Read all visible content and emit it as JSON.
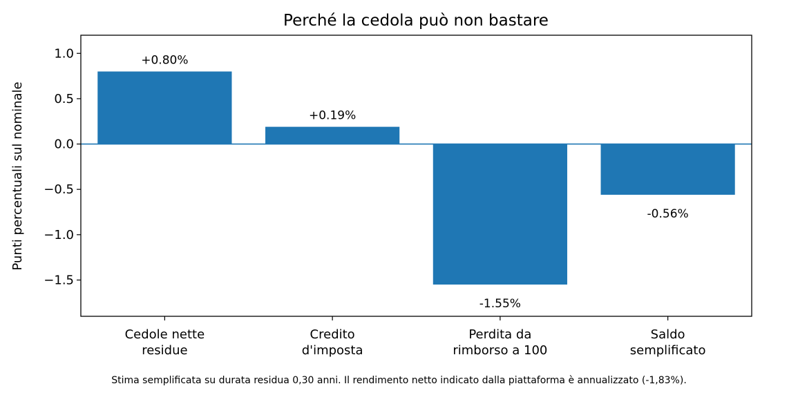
{
  "chart_data": {
    "type": "bar",
    "title": "Perché la cedola può non bastare",
    "ylabel": "Punti percentuali sul nominale",
    "xlabel": "",
    "categories": [
      [
        "Cedole nette",
        "residue"
      ],
      [
        "Credito",
        "d'imposta"
      ],
      [
        "Perdita da",
        "rimborso a 100"
      ],
      [
        "Saldo",
        "semplificato"
      ]
    ],
    "values": [
      0.8,
      0.19,
      -1.55,
      -0.56
    ],
    "data_labels": [
      "+0.80%",
      "+0.19%",
      "-1.55%",
      "-0.56%"
    ],
    "ylim": [
      -1.9,
      1.2
    ],
    "yticks": [
      1.0,
      0.5,
      0.0,
      -0.5,
      -1.0,
      -1.5
    ],
    "ytick_labels": [
      "1.0",
      "0.5",
      "0.0",
      "−0.5",
      "−1.0",
      "−1.5"
    ],
    "bar_color": "#1f77b4",
    "zero_line_color": "#1f77b4",
    "grid": false
  },
  "footnote": "Stima semplificata su durata residua 0,30 anni. Il rendimento netto indicato dalla piattaforma è annualizzato (-1,83%)."
}
